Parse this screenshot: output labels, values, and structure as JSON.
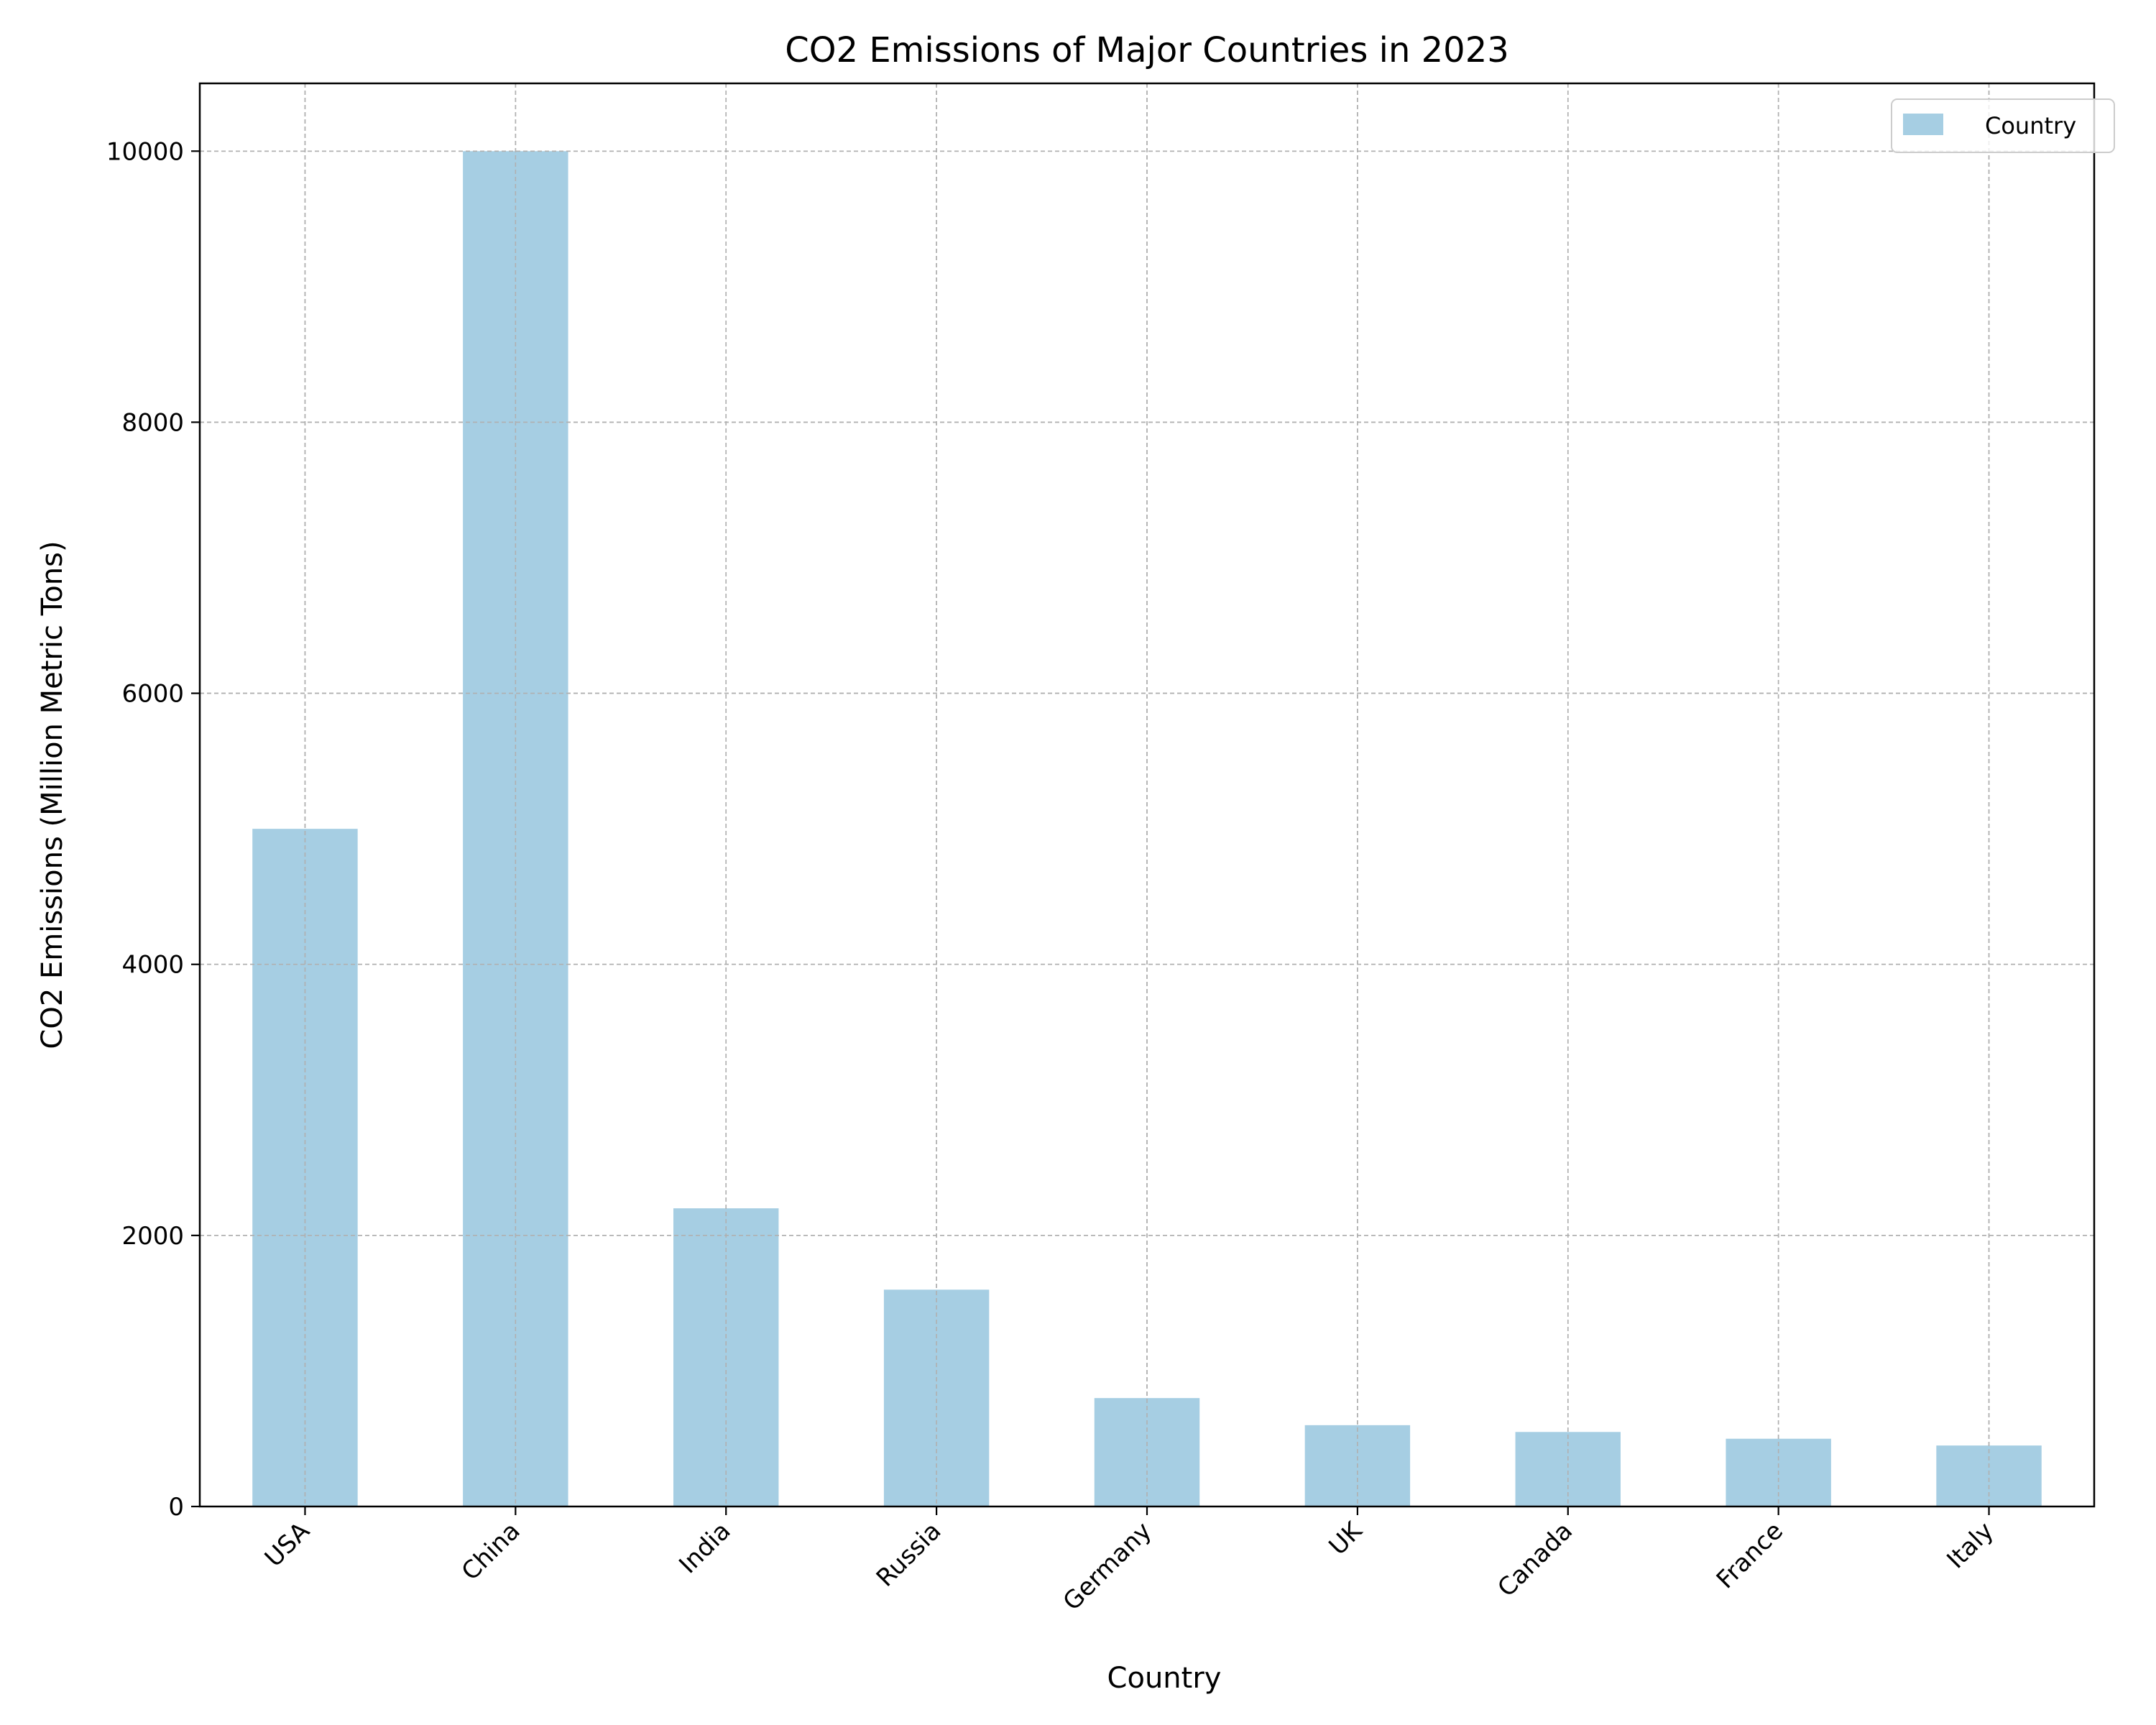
{
  "chart_data": {
    "type": "bar",
    "title": "CO2 Emissions of Major Countries in 2023",
    "xlabel": "Country",
    "ylabel": "CO2 Emissions (Million Metric Tons)",
    "categories": [
      "USA",
      "China",
      "India",
      "Russia",
      "Germany",
      "UK",
      "Canada",
      "France",
      "Italy"
    ],
    "series": [
      {
        "name": "Country",
        "values": [
          5000,
          10000,
          2200,
          1600,
          800,
          600,
          550,
          500,
          450
        ]
      }
    ],
    "ylim": [
      0,
      10500
    ],
    "yticks": [
      0,
      2000,
      4000,
      6000,
      8000,
      10000
    ],
    "grid": true,
    "legend_position": "top-right",
    "bar_color": "#a6cee3",
    "grid_color": "#b0b0b0"
  }
}
